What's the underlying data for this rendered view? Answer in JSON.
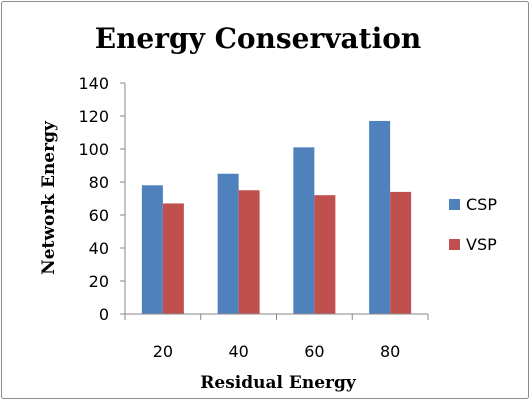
{
  "chart_data": {
    "type": "bar",
    "title": "Energy Conservation",
    "xlabel": "Residual Energy",
    "ylabel": "Network Energy",
    "categories": [
      "20",
      "40",
      "60",
      "80"
    ],
    "series": [
      {
        "name": "CSP",
        "color": "#4F81BD",
        "values": [
          78,
          85,
          101,
          117
        ]
      },
      {
        "name": "VSP",
        "color": "#C0504D",
        "values": [
          67,
          75,
          72,
          74
        ]
      }
    ],
    "ylim": [
      0,
      140
    ],
    "yticks": [
      0,
      20,
      40,
      60,
      80,
      100,
      120,
      140
    ],
    "grid": false,
    "legend_position": "right"
  }
}
